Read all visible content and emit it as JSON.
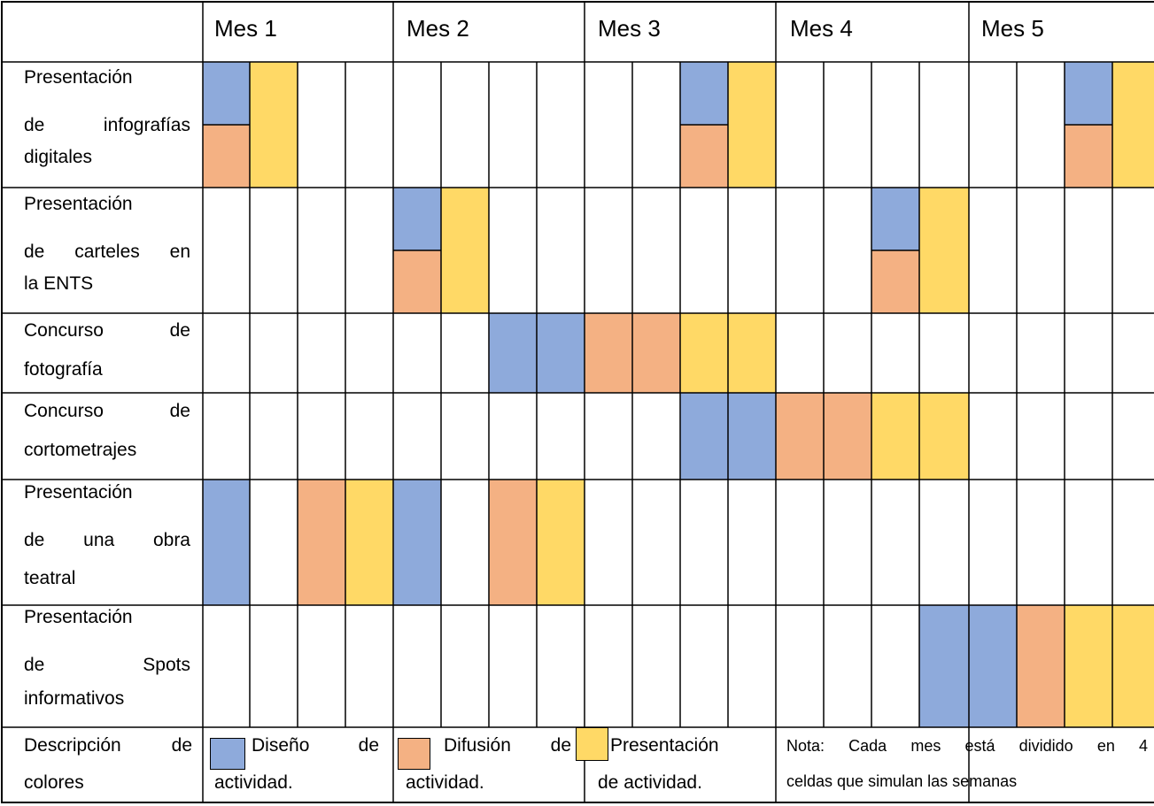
{
  "colors": {
    "design": "#8eaadb",
    "diffusion": "#f4b183",
    "presentation": "#ffd966"
  },
  "months": [
    "Mes 1",
    "Mes 2",
    "Mes 3",
    "Mes 4",
    "Mes 5"
  ],
  "activities": [
    {
      "lines": [
        "Presentación",
        "de infografías",
        "digitales"
      ],
      "cells": [
        {
          "w": 1,
          "t": "split"
        },
        {
          "w": 2,
          "t": "presentation"
        },
        {
          "w": 11,
          "t": "split"
        },
        {
          "w": 12,
          "t": "presentation"
        },
        {
          "w": 19,
          "t": "split"
        },
        {
          "w": 20,
          "t": "presentation"
        }
      ]
    },
    {
      "lines": [
        "Presentación",
        "de carteles en",
        "la ENTS"
      ],
      "cells": [
        {
          "w": 5,
          "t": "split"
        },
        {
          "w": 6,
          "t": "presentation"
        },
        {
          "w": 15,
          "t": "split"
        },
        {
          "w": 16,
          "t": "presentation"
        }
      ]
    },
    {
      "lines": [
        "Concurso de",
        "fotografía"
      ],
      "cells": [
        {
          "w": 7,
          "t": "design"
        },
        {
          "w": 8,
          "t": "design"
        },
        {
          "w": 9,
          "t": "diffusion"
        },
        {
          "w": 10,
          "t": "diffusion"
        },
        {
          "w": 11,
          "t": "presentation"
        },
        {
          "w": 12,
          "t": "presentation"
        }
      ]
    },
    {
      "lines": [
        "Concurso de",
        "cortometrajes"
      ],
      "cells": [
        {
          "w": 11,
          "t": "design"
        },
        {
          "w": 12,
          "t": "design"
        },
        {
          "w": 13,
          "t": "diffusion"
        },
        {
          "w": 14,
          "t": "diffusion"
        },
        {
          "w": 15,
          "t": "presentation"
        },
        {
          "w": 16,
          "t": "presentation"
        }
      ]
    },
    {
      "lines": [
        "Presentación",
        "de una obra",
        "teatral"
      ],
      "cells": [
        {
          "w": 1,
          "t": "design"
        },
        {
          "w": 3,
          "t": "diffusion"
        },
        {
          "w": 4,
          "t": "presentation"
        },
        {
          "w": 5,
          "t": "design"
        },
        {
          "w": 7,
          "t": "diffusion"
        },
        {
          "w": 8,
          "t": "presentation"
        }
      ]
    },
    {
      "lines": [
        "Presentación",
        "de Spots",
        "informativos"
      ],
      "cells": [
        {
          "w": 16,
          "t": "design"
        },
        {
          "w": 17,
          "t": "design"
        },
        {
          "w": 18,
          "t": "diffusion"
        },
        {
          "w": 19,
          "t": "presentation"
        },
        {
          "w": 20,
          "t": "presentation"
        }
      ]
    }
  ],
  "legend": {
    "title": [
      "Descripción de",
      "colores"
    ],
    "design": [
      "Diseño de",
      "actividad."
    ],
    "diffusion": [
      "Difusión de",
      "actividad."
    ],
    "presentation": [
      "Presentación",
      "de actividad."
    ],
    "note": [
      "Nota: Cada mes está dividido en 4",
      "celdas que simulan las semanas"
    ]
  }
}
